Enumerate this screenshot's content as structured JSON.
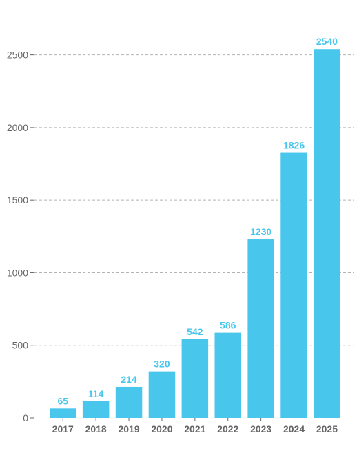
{
  "chart_data": {
    "type": "bar",
    "title": "",
    "xlabel": "",
    "ylabel": "",
    "categories": [
      "2017",
      "2018",
      "2019",
      "2020",
      "2021",
      "2022",
      "2023",
      "2024",
      "2025"
    ],
    "values": [
      65,
      114,
      214,
      320,
      542,
      586,
      1230,
      1826,
      2540
    ],
    "data_labels": [
      "65",
      "114",
      "214",
      "320",
      "542",
      "586",
      "1230",
      "1826",
      "2540"
    ],
    "ylim": [
      0,
      2750
    ],
    "yticks": [
      0,
      500,
      1000,
      1500,
      2000,
      2500
    ],
    "ytick_labels": [
      "0",
      "500",
      "1000",
      "1500",
      "2000",
      "2500"
    ],
    "grid": "horizontal dashed",
    "legend": "none",
    "colors": {
      "bar": "#48c6ec",
      "data_label": "#48c6ec",
      "grid": "#b3b3b3",
      "text": "#666666"
    }
  }
}
